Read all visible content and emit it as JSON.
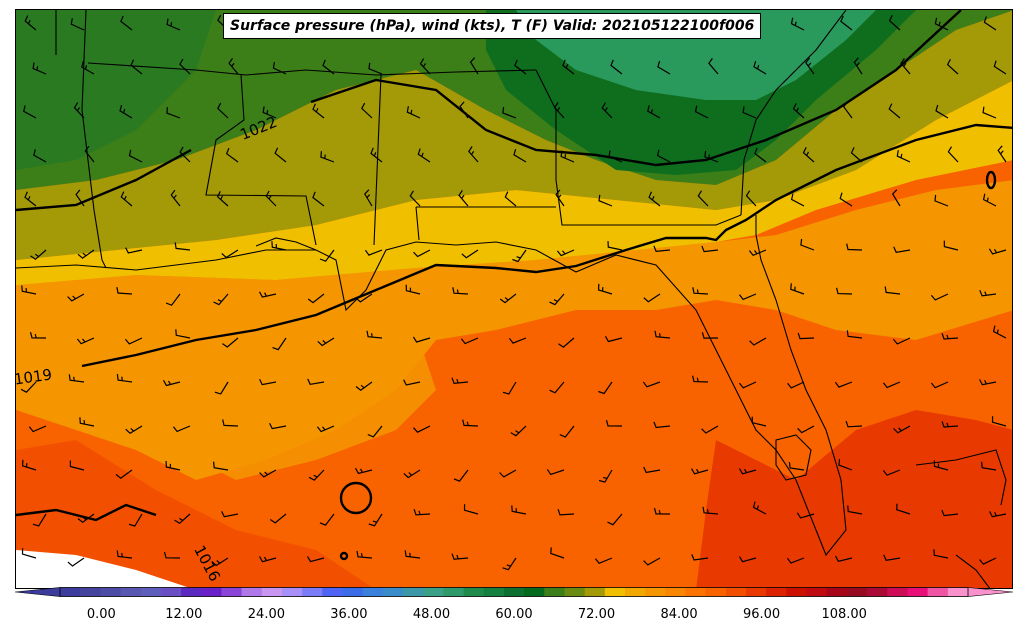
{
  "title": "Surface pressure (hPa), wind (kts), T (F) Valid: 202105122100f006",
  "isobar_labels": [
    "1022",
    "1019",
    "1016"
  ],
  "colorbar": {
    "tick_labels": [
      "0.00",
      "12.00",
      "24.00",
      "36.00",
      "48.00",
      "60.00",
      "72.00",
      "84.00",
      "96.00",
      "108.00"
    ],
    "min": -6,
    "max": 126,
    "step": 3,
    "colors": [
      "#3c3c9c",
      "#44449e",
      "#4c4ca6",
      "#5858b0",
      "#5e5ebc",
      "#6a4ec4",
      "#5a2ac0",
      "#6a20c8",
      "#8a44d8",
      "#b077e6",
      "#c896f0",
      "#a890f8",
      "#7a7cf8",
      "#4e64f4",
      "#3a6ce8",
      "#3a80dc",
      "#3a8cc8",
      "#3c98a8",
      "#3aa088",
      "#2e9a6c",
      "#1e8a4c",
      "#168040",
      "#0e7030",
      "#066a1e",
      "#3c7e18",
      "#6a8a10",
      "#a49a08",
      "#f0c000",
      "#f2a800",
      "#f59500",
      "#f88600",
      "#fb7300",
      "#f86300",
      "#f25000",
      "#e83a00",
      "#dc2200",
      "#cc1000",
      "#be0a10",
      "#a6051a",
      "#960b22",
      "#aa0a36",
      "#cc0c56",
      "#e81078",
      "#f054a4",
      "#f891cc"
    ]
  },
  "legend_colors": {
    "cold_green": "#0e6e1e",
    "mid_green": "#2a8a2c",
    "olive": "#a49a08",
    "yellow": "#f0c000",
    "orange": "#f59500",
    "deep_orange": "#f86300",
    "red_orange": "#e83a00"
  }
}
